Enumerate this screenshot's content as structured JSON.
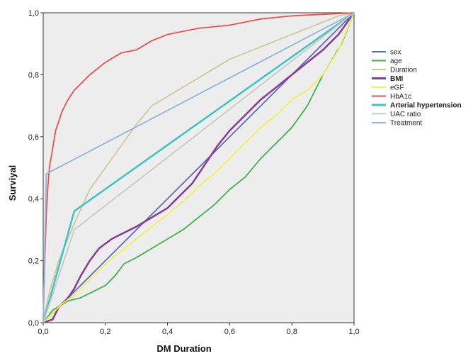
{
  "chart_data": {
    "type": "line",
    "title": "",
    "xlabel": "DM Duration",
    "ylabel": "Surviyal",
    "xlim": [
      0,
      1
    ],
    "ylim": [
      0,
      1
    ],
    "x_ticks": [
      "0,0",
      "0,2",
      "0,4",
      "0,6",
      "0,8",
      "1,0"
    ],
    "y_ticks": [
      "0,0",
      "0,2",
      "0,4",
      "0,6",
      "0,8",
      "1,0"
    ],
    "grid": false,
    "legend_position": "right",
    "plot_background": "#ededed",
    "series": [
      {
        "name": "sex",
        "color": "#5b6bbf",
        "bold": false,
        "points": [
          [
            0,
            0
          ],
          [
            1,
            1
          ]
        ]
      },
      {
        "name": "age",
        "color": "#3db34a",
        "bold": false,
        "points": [
          [
            0,
            0
          ],
          [
            0.03,
            0.04
          ],
          [
            0.08,
            0.07
          ],
          [
            0.12,
            0.08
          ],
          [
            0.16,
            0.1
          ],
          [
            0.2,
            0.12
          ],
          [
            0.23,
            0.15
          ],
          [
            0.26,
            0.19
          ],
          [
            0.3,
            0.21
          ],
          [
            0.35,
            0.24
          ],
          [
            0.4,
            0.27
          ],
          [
            0.45,
            0.3
          ],
          [
            0.5,
            0.34
          ],
          [
            0.55,
            0.38
          ],
          [
            0.6,
            0.43
          ],
          [
            0.65,
            0.47
          ],
          [
            0.7,
            0.53
          ],
          [
            0.75,
            0.58
          ],
          [
            0.8,
            0.63
          ],
          [
            0.85,
            0.7
          ],
          [
            0.88,
            0.76
          ],
          [
            0.9,
            0.8
          ],
          [
            0.93,
            0.85
          ],
          [
            0.96,
            0.9
          ],
          [
            1,
            1
          ]
        ]
      },
      {
        "name": "Duration",
        "color": "#cdc899",
        "bold": false,
        "points": [
          [
            0,
            0
          ],
          [
            0.02,
            0.1
          ],
          [
            0.05,
            0.2
          ],
          [
            0.1,
            0.32
          ],
          [
            0.15,
            0.43
          ],
          [
            0.2,
            0.5
          ],
          [
            0.25,
            0.57
          ],
          [
            0.3,
            0.64
          ],
          [
            0.35,
            0.7
          ],
          [
            0.4,
            0.73
          ],
          [
            0.45,
            0.76
          ],
          [
            0.5,
            0.79
          ],
          [
            0.55,
            0.82
          ],
          [
            0.6,
            0.85
          ],
          [
            0.65,
            0.87
          ],
          [
            0.7,
            0.89
          ],
          [
            0.75,
            0.91
          ],
          [
            0.8,
            0.93
          ],
          [
            0.85,
            0.95
          ],
          [
            0.9,
            0.97
          ],
          [
            0.95,
            0.99
          ],
          [
            1,
            1
          ]
        ]
      },
      {
        "name": "BMI",
        "color": "#8b3a96",
        "bold": true,
        "points": [
          [
            0,
            0
          ],
          [
            0.03,
            0.01
          ],
          [
            0.05,
            0.05
          ],
          [
            0.08,
            0.08
          ],
          [
            0.1,
            0.11
          ],
          [
            0.12,
            0.15
          ],
          [
            0.15,
            0.2
          ],
          [
            0.18,
            0.24
          ],
          [
            0.22,
            0.27
          ],
          [
            0.26,
            0.29
          ],
          [
            0.3,
            0.31
          ],
          [
            0.35,
            0.34
          ],
          [
            0.4,
            0.37
          ],
          [
            0.44,
            0.41
          ],
          [
            0.48,
            0.45
          ],
          [
            0.52,
            0.51
          ],
          [
            0.56,
            0.57
          ],
          [
            0.6,
            0.62
          ],
          [
            0.65,
            0.67
          ],
          [
            0.7,
            0.72
          ],
          [
            0.75,
            0.76
          ],
          [
            0.8,
            0.8
          ],
          [
            0.85,
            0.84
          ],
          [
            0.9,
            0.88
          ],
          [
            0.95,
            0.93
          ],
          [
            1,
            1
          ]
        ]
      },
      {
        "name": "eGF",
        "color": "#f0f050",
        "bold": false,
        "points": [
          [
            0,
            0
          ],
          [
            0.03,
            0.03
          ],
          [
            0.06,
            0.06
          ],
          [
            0.1,
            0.09
          ],
          [
            0.15,
            0.14
          ],
          [
            0.2,
            0.19
          ],
          [
            0.25,
            0.23
          ],
          [
            0.3,
            0.27
          ],
          [
            0.35,
            0.31
          ],
          [
            0.4,
            0.35
          ],
          [
            0.45,
            0.39
          ],
          [
            0.5,
            0.44
          ],
          [
            0.55,
            0.48
          ],
          [
            0.6,
            0.53
          ],
          [
            0.65,
            0.58
          ],
          [
            0.7,
            0.63
          ],
          [
            0.75,
            0.67
          ],
          [
            0.8,
            0.72
          ],
          [
            0.85,
            0.75
          ],
          [
            0.9,
            0.8
          ],
          [
            0.95,
            0.88
          ],
          [
            1,
            1
          ]
        ]
      },
      {
        "name": "HbA1c",
        "color": "#ef4f4f",
        "bold": false,
        "points": [
          [
            0,
            0
          ],
          [
            0.005,
            0.2
          ],
          [
            0.01,
            0.35
          ],
          [
            0.015,
            0.44
          ],
          [
            0.02,
            0.5
          ],
          [
            0.03,
            0.56
          ],
          [
            0.04,
            0.62
          ],
          [
            0.06,
            0.68
          ],
          [
            0.08,
            0.72
          ],
          [
            0.1,
            0.75
          ],
          [
            0.12,
            0.77
          ],
          [
            0.15,
            0.8
          ],
          [
            0.2,
            0.84
          ],
          [
            0.25,
            0.87
          ],
          [
            0.3,
            0.88
          ],
          [
            0.35,
            0.91
          ],
          [
            0.4,
            0.93
          ],
          [
            0.45,
            0.94
          ],
          [
            0.5,
            0.95
          ],
          [
            0.6,
            0.96
          ],
          [
            0.7,
            0.98
          ],
          [
            0.8,
            0.99
          ],
          [
            0.9,
            0.995
          ],
          [
            1,
            1
          ]
        ]
      },
      {
        "name": "Arterial hypertension",
        "color": "#3fc2c2",
        "bold": true,
        "points": [
          [
            0,
            0
          ],
          [
            0.1,
            0.36
          ],
          [
            1,
            1
          ]
        ]
      },
      {
        "name": "UAC ratio",
        "color": "#c8c8c8",
        "bold": false,
        "points": [
          [
            0,
            0
          ],
          [
            0.1,
            0.3
          ],
          [
            1,
            1
          ]
        ]
      },
      {
        "name": "Treatment",
        "color": "#8fb4dc",
        "bold": false,
        "points": [
          [
            0,
            0
          ],
          [
            0.01,
            0.48
          ],
          [
            1,
            1
          ]
        ]
      }
    ]
  }
}
